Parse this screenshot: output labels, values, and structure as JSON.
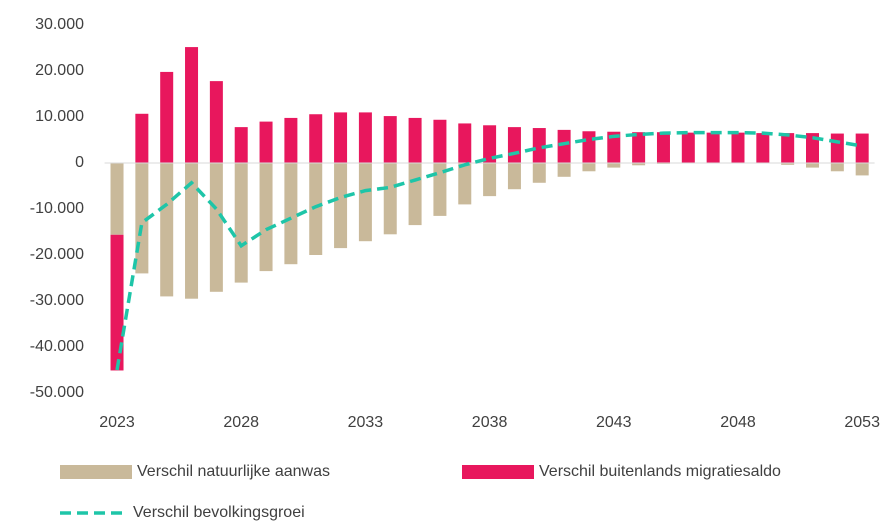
{
  "chart_data": {
    "type": "bar",
    "stacked": true,
    "categories": [
      "2023",
      null,
      null,
      null,
      null,
      "2028",
      null,
      null,
      null,
      null,
      "2033",
      null,
      null,
      null,
      null,
      "2038",
      null,
      null,
      null,
      null,
      "2043",
      null,
      null,
      null,
      null,
      "2048",
      null,
      null,
      null,
      null,
      "2053"
    ],
    "series": [
      {
        "name": "Verschil natuurlijke aanwas",
        "color": "#c9b99a",
        "type": "bar",
        "values": [
          -15600,
          -24000,
          -29000,
          -29500,
          -28000,
          -26000,
          -23500,
          -22000,
          -20000,
          -18500,
          -17000,
          -15500,
          -13500,
          -11500,
          -9000,
          -7200,
          -5700,
          -4300,
          -3000,
          -1800,
          -1000,
          -500,
          -200,
          0,
          0,
          0,
          0,
          -400,
          -1000,
          -1800,
          -2700
        ]
      },
      {
        "name": "Verschil buitenlands migratiesaldo",
        "color": "#e8175d",
        "type": "bar",
        "values": [
          -29500,
          10700,
          19800,
          25200,
          17800,
          7800,
          9000,
          9800,
          10600,
          11000,
          11000,
          10200,
          9800,
          9400,
          8600,
          8200,
          7800,
          7600,
          7200,
          6900,
          6800,
          6700,
          6700,
          6600,
          6600,
          6600,
          6500,
          6500,
          6500,
          6400,
          6400
        ]
      },
      {
        "name": "Verschil bevolkingsgroei",
        "color": "#1ec5a8",
        "type": "line",
        "dashed": true,
        "values": [
          -45000,
          -13000,
          -9000,
          -4300,
          -10000,
          -18000,
          -14500,
          -12000,
          -9500,
          -7500,
          -6000,
          -5300,
          -3700,
          -2100,
          -400,
          1000,
          2100,
          3300,
          4200,
          5100,
          5800,
          6200,
          6500,
          6600,
          6600,
          6600,
          6500,
          6100,
          5500,
          4600,
          3700
        ]
      }
    ],
    "ylim": [
      -50000,
      30000
    ],
    "yticks": [
      {
        "value": -50000,
        "label": "-50.000"
      },
      {
        "value": -40000,
        "label": "-40.000"
      },
      {
        "value": -30000,
        "label": "-30.000"
      },
      {
        "value": -20000,
        "label": "-20.000"
      },
      {
        "value": -10000,
        "label": "-10.000"
      },
      0,
      {
        "value": 10000,
        "label": "10.000"
      },
      {
        "value": 20000,
        "label": "20.000"
      },
      {
        "value": 30000,
        "label": "30.000"
      }
    ],
    "grid": false,
    "legend": "bottom"
  }
}
